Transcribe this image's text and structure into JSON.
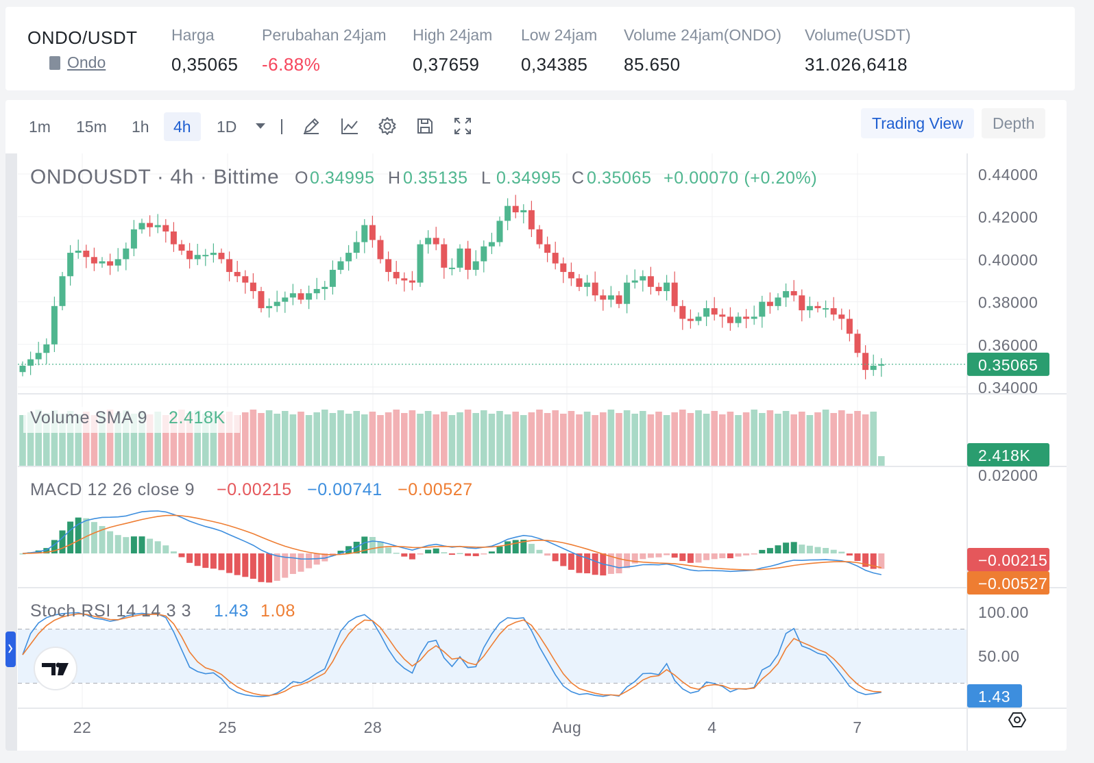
{
  "ticker": {
    "symbol": "ONDO/USDT",
    "sub": "Ondo",
    "fields": [
      {
        "label": "Harga",
        "value": "0,35065",
        "neg": false
      },
      {
        "label": "Perubahan 24jam",
        "value": "-6.88%",
        "neg": true
      },
      {
        "label": "High 24jam",
        "value": "0,37659",
        "neg": false
      },
      {
        "label": "Low 24jam",
        "value": "0,34385",
        "neg": false
      },
      {
        "label": "Volume 24jam(ONDO)",
        "value": "85.650",
        "neg": false
      },
      {
        "label": "Volume(USDT)",
        "value": "31.026,6418",
        "neg": false
      }
    ]
  },
  "toolbar": {
    "timeframes": [
      "1m",
      "15m",
      "1h",
      "4h",
      "1D"
    ],
    "active": "4h",
    "icons": [
      "chevron-down-icon",
      "pencil-icon",
      "indicator-icon",
      "gear-icon",
      "save-icon",
      "fullscreen-icon"
    ],
    "views": [
      "Trading View",
      "Depth"
    ],
    "active_view": "Trading View"
  },
  "colors": {
    "up": "#4fb68f",
    "down": "#e5575b",
    "macd": "#3d8ede",
    "signal": "#ee7d32",
    "accent": "#1f5fd1"
  },
  "chart_data": {
    "type": "candlestick",
    "title": "ONDOUSDT · 4h · Bittime",
    "ohlc": {
      "O": "0.34995",
      "H": "0.35135",
      "L": "0.34995",
      "C": "0.35065",
      "change": "+0.00070 (+0.20%)"
    },
    "price_axis": {
      "ticks": [
        "0.44000",
        "0.42000",
        "0.40000",
        "0.38000",
        "0.36000",
        "0.34000"
      ],
      "min": 0.34,
      "max": 0.44
    },
    "last_price": "0.35065",
    "x_ticks": [
      "22",
      "25",
      "28",
      "Aug",
      "4",
      "7"
    ],
    "closes": [
      0.35,
      0.353,
      0.356,
      0.36,
      0.378,
      0.392,
      0.403,
      0.404,
      0.401,
      0.398,
      0.399,
      0.397,
      0.4,
      0.405,
      0.414,
      0.417,
      0.415,
      0.416,
      0.413,
      0.407,
      0.404,
      0.4,
      0.402,
      0.402,
      0.403,
      0.4,
      0.394,
      0.392,
      0.389,
      0.385,
      0.377,
      0.378,
      0.38,
      0.382,
      0.384,
      0.381,
      0.384,
      0.386,
      0.387,
      0.395,
      0.399,
      0.403,
      0.408,
      0.416,
      0.409,
      0.4,
      0.394,
      0.391,
      0.39,
      0.389,
      0.407,
      0.41,
      0.407,
      0.396,
      0.396,
      0.405,
      0.395,
      0.399,
      0.406,
      0.408,
      0.418,
      0.425,
      0.422,
      0.423,
      0.414,
      0.407,
      0.403,
      0.398,
      0.394,
      0.391,
      0.387,
      0.389,
      0.383,
      0.381,
      0.383,
      0.379,
      0.389,
      0.39,
      0.392,
      0.387,
      0.385,
      0.389,
      0.378,
      0.372,
      0.371,
      0.373,
      0.377,
      0.374,
      0.373,
      0.37,
      0.373,
      0.372,
      0.373,
      0.38,
      0.378,
      0.382,
      0.385,
      0.383,
      0.376,
      0.378,
      0.377,
      0.377,
      0.374,
      0.372,
      0.365,
      0.356,
      0.348,
      0.35,
      0.3507
    ],
    "volume_label": "Volume SMA 9",
    "volume_value": "2.418K",
    "macd": {
      "label": "MACD 12 26 close 9",
      "values": [
        "−0.00215",
        "−0.00741",
        "−0.00527"
      ],
      "axis_ticks": [
        "0.02000"
      ],
      "badges": [
        "−0.00215",
        "−0.00527"
      ]
    },
    "stoch_rsi": {
      "label": "Stoch RSI 14 14 3 3",
      "values": [
        "1.43",
        "1.08"
      ],
      "axis_ticks": [
        "100.00",
        "50.00"
      ],
      "badge": "1.43"
    }
  }
}
